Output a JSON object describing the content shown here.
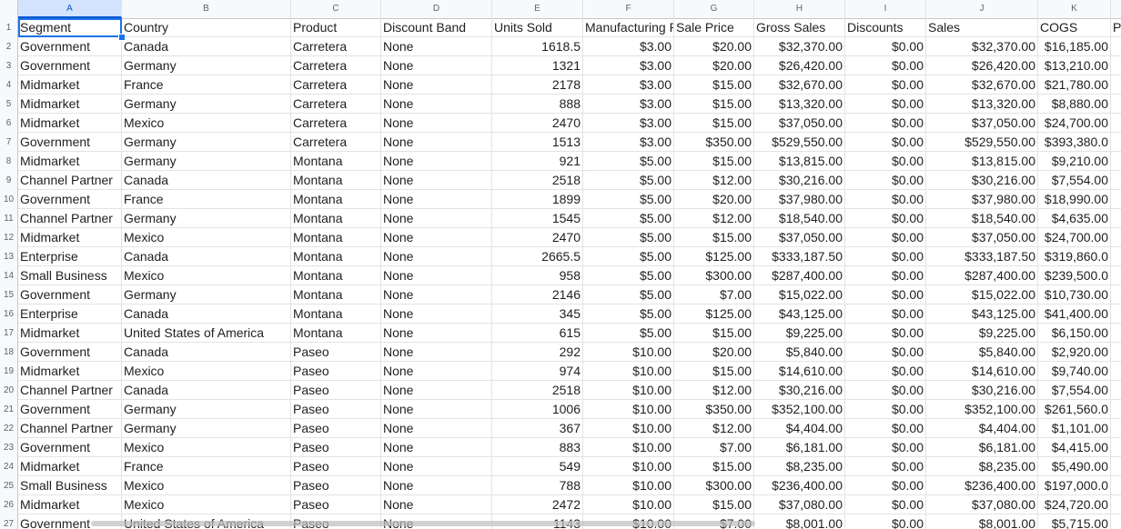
{
  "columns": [
    "A",
    "B",
    "C",
    "D",
    "E",
    "F",
    "G",
    "H",
    "I",
    "J",
    "K"
  ],
  "selected_column": "A",
  "selected_cell": "A1",
  "headers": [
    "Segment",
    "Country",
    "Product",
    "Discount Band",
    "Units Sold",
    "Manufacturing Price",
    "Sale Price",
    "Gross Sales",
    "Discounts",
    "Sales",
    "COGS",
    "P"
  ],
  "rows": [
    [
      "Government",
      "Canada",
      "Carretera",
      "None",
      "1618.5",
      "$3.00",
      "$20.00",
      "$32,370.00",
      "$0.00",
      "$32,370.00",
      "$16,185.00"
    ],
    [
      "Government",
      "Germany",
      "Carretera",
      "None",
      "1321",
      "$3.00",
      "$20.00",
      "$26,420.00",
      "$0.00",
      "$26,420.00",
      "$13,210.00"
    ],
    [
      "Midmarket",
      "France",
      "Carretera",
      "None",
      "2178",
      "$3.00",
      "$15.00",
      "$32,670.00",
      "$0.00",
      "$32,670.00",
      "$21,780.00"
    ],
    [
      "Midmarket",
      "Germany",
      "Carretera",
      "None",
      "888",
      "$3.00",
      "$15.00",
      "$13,320.00",
      "$0.00",
      "$13,320.00",
      "$8,880.00"
    ],
    [
      "Midmarket",
      "Mexico",
      "Carretera",
      "None",
      "2470",
      "$3.00",
      "$15.00",
      "$37,050.00",
      "$0.00",
      "$37,050.00",
      "$24,700.00"
    ],
    [
      "Government",
      "Germany",
      "Carretera",
      "None",
      "1513",
      "$3.00",
      "$350.00",
      "$529,550.00",
      "$0.00",
      "$529,550.00",
      "$393,380.0"
    ],
    [
      "Midmarket",
      "Germany",
      "Montana",
      "None",
      "921",
      "$5.00",
      "$15.00",
      "$13,815.00",
      "$0.00",
      "$13,815.00",
      "$9,210.00"
    ],
    [
      "Channel Partner",
      "Canada",
      "Montana",
      "None",
      "2518",
      "$5.00",
      "$12.00",
      "$30,216.00",
      "$0.00",
      "$30,216.00",
      "$7,554.00"
    ],
    [
      "Government",
      "France",
      "Montana",
      "None",
      "1899",
      "$5.00",
      "$20.00",
      "$37,980.00",
      "$0.00",
      "$37,980.00",
      "$18,990.00"
    ],
    [
      "Channel Partner",
      "Germany",
      "Montana",
      "None",
      "1545",
      "$5.00",
      "$12.00",
      "$18,540.00",
      "$0.00",
      "$18,540.00",
      "$4,635.00"
    ],
    [
      "Midmarket",
      "Mexico",
      "Montana",
      "None",
      "2470",
      "$5.00",
      "$15.00",
      "$37,050.00",
      "$0.00",
      "$37,050.00",
      "$24,700.00"
    ],
    [
      "Enterprise",
      "Canada",
      "Montana",
      "None",
      "2665.5",
      "$5.00",
      "$125.00",
      "$333,187.50",
      "$0.00",
      "$333,187.50",
      "$319,860.0"
    ],
    [
      "Small Business",
      "Mexico",
      "Montana",
      "None",
      "958",
      "$5.00",
      "$300.00",
      "$287,400.00",
      "$0.00",
      "$287,400.00",
      "$239,500.0"
    ],
    [
      "Government",
      "Germany",
      "Montana",
      "None",
      "2146",
      "$5.00",
      "$7.00",
      "$15,022.00",
      "$0.00",
      "$15,022.00",
      "$10,730.00"
    ],
    [
      "Enterprise",
      "Canada",
      "Montana",
      "None",
      "345",
      "$5.00",
      "$125.00",
      "$43,125.00",
      "$0.00",
      "$43,125.00",
      "$41,400.00"
    ],
    [
      "Midmarket",
      "United States of America",
      "Montana",
      "None",
      "615",
      "$5.00",
      "$15.00",
      "$9,225.00",
      "$0.00",
      "$9,225.00",
      "$6,150.00"
    ],
    [
      "Government",
      "Canada",
      "Paseo",
      "None",
      "292",
      "$10.00",
      "$20.00",
      "$5,840.00",
      "$0.00",
      "$5,840.00",
      "$2,920.00"
    ],
    [
      "Midmarket",
      "Mexico",
      "Paseo",
      "None",
      "974",
      "$10.00",
      "$15.00",
      "$14,610.00",
      "$0.00",
      "$14,610.00",
      "$9,740.00"
    ],
    [
      "Channel Partner",
      "Canada",
      "Paseo",
      "None",
      "2518",
      "$10.00",
      "$12.00",
      "$30,216.00",
      "$0.00",
      "$30,216.00",
      "$7,554.00"
    ],
    [
      "Government",
      "Germany",
      "Paseo",
      "None",
      "1006",
      "$10.00",
      "$350.00",
      "$352,100.00",
      "$0.00",
      "$352,100.00",
      "$261,560.0"
    ],
    [
      "Channel Partner",
      "Germany",
      "Paseo",
      "None",
      "367",
      "$10.00",
      "$12.00",
      "$4,404.00",
      "$0.00",
      "$4,404.00",
      "$1,101.00"
    ],
    [
      "Government",
      "Mexico",
      "Paseo",
      "None",
      "883",
      "$10.00",
      "$7.00",
      "$6,181.00",
      "$0.00",
      "$6,181.00",
      "$4,415.00"
    ],
    [
      "Midmarket",
      "France",
      "Paseo",
      "None",
      "549",
      "$10.00",
      "$15.00",
      "$8,235.00",
      "$0.00",
      "$8,235.00",
      "$5,490.00"
    ],
    [
      "Small Business",
      "Mexico",
      "Paseo",
      "None",
      "788",
      "$10.00",
      "$300.00",
      "$236,400.00",
      "$0.00",
      "$236,400.00",
      "$197,000.0"
    ],
    [
      "Midmarket",
      "Mexico",
      "Paseo",
      "None",
      "2472",
      "$10.00",
      "$15.00",
      "$37,080.00",
      "$0.00",
      "$37,080.00",
      "$24,720.00"
    ],
    [
      "Government",
      "United States of America",
      "Paseo",
      "None",
      "1143",
      "$10.00",
      "$7.00",
      "$8,001.00",
      "$0.00",
      "$8,001.00",
      "$5,715.00"
    ]
  ],
  "colors": {
    "selection": "#1a73e8",
    "header_bg": "#f8f9fa",
    "gridline": "#e2e3e3"
  }
}
